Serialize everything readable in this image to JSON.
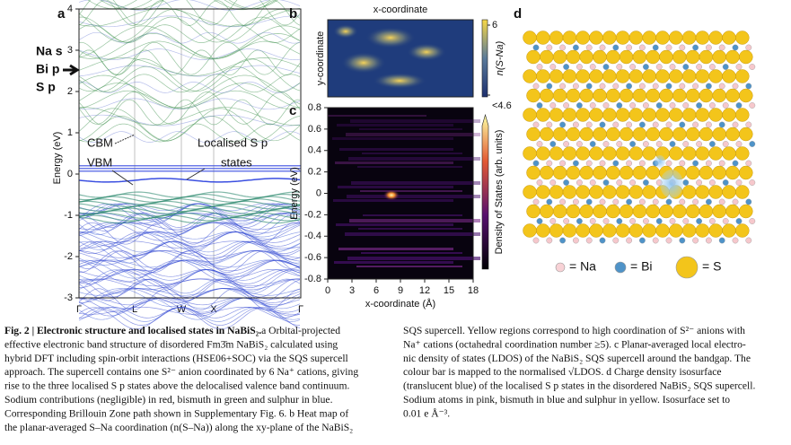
{
  "figure": {
    "panel_a": {
      "label": "a",
      "ylabel": "Energy (eV)",
      "ylim": [
        -3,
        4
      ],
      "yticks": [
        4,
        3,
        2,
        1,
        0,
        -1,
        -2,
        -3
      ],
      "kpoints": [
        "Γ",
        "L",
        "W",
        "X",
        "Γ"
      ],
      "legend": [
        {
          "name": "Na s",
          "color": "#e0393e"
        },
        {
          "name": "Bi p",
          "color": "#2f8a3f"
        },
        {
          "name": "S p",
          "color": "#2c3fd0"
        }
      ],
      "annotations": [
        "CBM",
        "VBM",
        "Localised S p",
        "states"
      ]
    },
    "panel_b": {
      "label": "b",
      "title": "x-coordinate",
      "ylabel": "y-coordinate",
      "colorbar_label": "n(S-Na)",
      "clim": [
        4.6,
        6
      ],
      "cticks": [
        6,
        {
          "value": 4.6,
          "label": "<4.6"
        }
      ]
    },
    "panel_c": {
      "label": "c",
      "xlabel": "x-coordinate (Å)",
      "ylabel": "Energy (eV)",
      "colorbar_label": "Density of States (arb. units)",
      "xlim": [
        0,
        18
      ],
      "xticks": [
        0,
        3,
        6,
        9,
        12,
        15,
        18
      ],
      "ylim": [
        -0.8,
        0.8
      ],
      "yticks": [
        0.8,
        0.6,
        0.4,
        0.2,
        0,
        -0.2,
        -0.4,
        -0.6,
        -0.8
      ]
    },
    "panel_d": {
      "label": "d",
      "legend": [
        "= Na",
        "= Bi",
        "= S"
      ]
    },
    "caption": {
      "heading": "Fig. 2 | Electronic structure and localised states in NaBiS₂.",
      "left": [
        " a Orbital-projected",
        "effective electronic band structure of disordered Fm3̄m NaBiS₂ calculated using",
        "hybrid DFT including spin-orbit interactions (HSE06+SOC) via the SQS supercell",
        "approach. The supercell contains one S²⁻ anion coordinated by 6 Na⁺ cations, giving",
        "rise to the three localised S p states above the delocalised valence band continuum.",
        "Sodium contributions (negligible) in red, bismuth in green and sulphur in blue.",
        "Corresponding Brillouin Zone path shown in Supplementary Fig. 6. b Heat map of",
        "the planar-averaged S–Na coordination (n(S–Na)) along the xy-plane of the NaBiS₂"
      ],
      "right": [
        "SQS supercell. Yellow regions correspond to high coordination of S²⁻ anions with",
        "Na⁺ cations (octahedral coordination number ≥5). c Planar-averaged local electro-",
        "nic density of states (LDOS) of the NaBiS₂ SQS supercell around the bandgap. The",
        "colour bar is mapped to the normalised √LDOS. d Charge density isosurface",
        "(translucent blue) of the localised S p states in the disordered NaBiS₂ SQS supercell.",
        "Sodium atoms in pink, bismuth in blue and sulphur in yellow. Isosurface set to",
        "0.01 e Å⁻³."
      ]
    }
  }
}
